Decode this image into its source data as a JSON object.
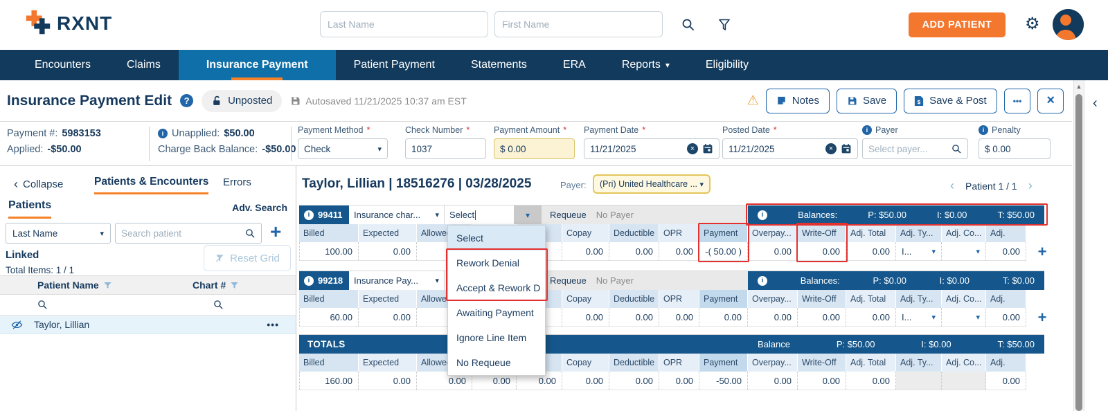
{
  "ui": {
    "required_marker": "*"
  },
  "icons": {
    "caret_down": "▾",
    "chevron_left": "‹",
    "chevron_right": "›",
    "gear": "⚙",
    "warning": "⚠",
    "more": "•••",
    "close": "×",
    "plus": "+",
    "scroll_up": "▲",
    "info": "i",
    "help": "?"
  },
  "colors": {
    "brand_orange": "#F4772E",
    "nav_navy": "#123A5C",
    "active_tab_blue": "#0F6FA8",
    "underline_orange": "#F58025",
    "bar_blue": "#15578C",
    "accent_blue": "#2066A8",
    "annotation_red": "#E2312F",
    "field_yellow": "#FBF3D4"
  },
  "header": {
    "brand": "RXNT",
    "last_name_placeholder": "Last Name",
    "first_name_placeholder": "First Name",
    "add_patient": "ADD PATIENT"
  },
  "nav": {
    "items": [
      {
        "label": "Encounters",
        "active": false,
        "caret": false
      },
      {
        "label": "Claims",
        "active": false,
        "caret": false
      },
      {
        "label": "Insurance Payment",
        "active": true,
        "caret": false
      },
      {
        "label": "Patient Payment",
        "active": false,
        "caret": false
      },
      {
        "label": "Statements",
        "active": false,
        "caret": false
      },
      {
        "label": "ERA",
        "active": false,
        "caret": false
      },
      {
        "label": "Reports",
        "active": false,
        "caret": true
      },
      {
        "label": "Eligibility",
        "active": false,
        "caret": false
      }
    ]
  },
  "title_bar": {
    "title": "Insurance Payment Edit",
    "status": "Unposted",
    "autosaved": "Autosaved 11/21/2025 10:37 am EST",
    "notes": "Notes",
    "save": "Save",
    "save_post": "Save & Post"
  },
  "payment_info": {
    "payment_no_label": "Payment #:",
    "payment_no": "5983153",
    "applied_label": "Applied:",
    "applied": "-$50.00",
    "unapplied_label": "Unapplied:",
    "unapplied": "$50.00",
    "charge_back_label": "Charge Back Balance:",
    "charge_back": "-$50.00",
    "payment_method_label": "Payment Method",
    "payment_method": "Check",
    "check_number_label": "Check Number",
    "check_number": "1037",
    "payment_amount_label": "Payment Amount",
    "payment_amount": "$ 0.00",
    "payment_date_label": "Payment Date",
    "payment_date": "11/21/2025",
    "posted_date_label": "Posted Date",
    "posted_date": "11/21/2025",
    "payer_label": "Payer",
    "payer_placeholder": "Select payer...",
    "penalty_label": "Penalty",
    "penalty": "$ 0.00"
  },
  "sidebar": {
    "collapse": "Collapse",
    "tab_patients_encounters": "Patients & Encounters",
    "tab_errors": "Errors",
    "patients_tab": "Patients",
    "adv_search": "Adv. Search",
    "search_by": "Last Name",
    "search_placeholder": "Search patient",
    "linked": "Linked",
    "total_items": "Total Items: 1 / 1",
    "reset_grid": "Reset Grid",
    "col_patient_name": "Patient Name",
    "col_chart": "Chart #",
    "rows": [
      {
        "patient_name": "Taylor, Lillian"
      }
    ]
  },
  "main": {
    "patient_header": "Taylor, Lillian | 18516276 | 03/28/2025",
    "payer_label": "Payer:",
    "payer_value": "(Pri) United Healthcare ...",
    "pagination": "Patient 1 / 1",
    "requeue_label": "Requeue",
    "columns": [
      "Billed",
      "Expected",
      "Allowed",
      "",
      "",
      "Copay",
      "Deductible",
      "OPR",
      "Payment",
      "Overpay...",
      "Write-Off",
      "Adj. Total",
      "Adj. Ty...",
      "Adj. Co...",
      "Adj."
    ],
    "line_items": [
      {
        "code": "99411",
        "type": "Insurance char...",
        "requeue_value": "Select",
        "payer": "No Payer",
        "balances_label": "Balances:",
        "balances": [
          "P: $50.00",
          "I: $0.00",
          "T: $50.00"
        ],
        "values": [
          "100.00",
          "0.00",
          "0.00",
          "",
          "",
          "0.00",
          "0.00",
          "0.00",
          "-( 50.00 )",
          "0.00",
          "0.00",
          "0.00",
          "I...",
          "",
          "0.00"
        ]
      },
      {
        "code": "99218",
        "type": "Insurance Pay...",
        "requeue_value": "",
        "payer": "No Payer",
        "balances_label": "Balances:",
        "balances": [
          "P: $0.00",
          "I: $0.00",
          "T: $0.00"
        ],
        "values": [
          "60.00",
          "0.00",
          "0.00",
          "",
          "",
          "0.00",
          "0.00",
          "0.00",
          "0.00",
          "0.00",
          "0.00",
          "0.00",
          "I...",
          "",
          "0.00"
        ]
      }
    ],
    "totals": {
      "label": "TOTALS",
      "balance_label": "Balance",
      "balances": [
        "P: $50.00",
        "I: $0.00",
        "T: $50.00"
      ],
      "values": [
        "160.00",
        "0.00",
        "0.00",
        "0.00",
        "0.00",
        "0.00",
        "0.00",
        "0.00",
        "-50.00",
        "0.00",
        "0.00",
        "0.00",
        "",
        "",
        "0.00"
      ]
    }
  },
  "requeue_dropdown": {
    "selected": "Select",
    "options": [
      "Select",
      "Rework Denial",
      "Accept & Rework D",
      "Awaiting Payment",
      "Ignore Line Item",
      "No Requeue"
    ]
  }
}
